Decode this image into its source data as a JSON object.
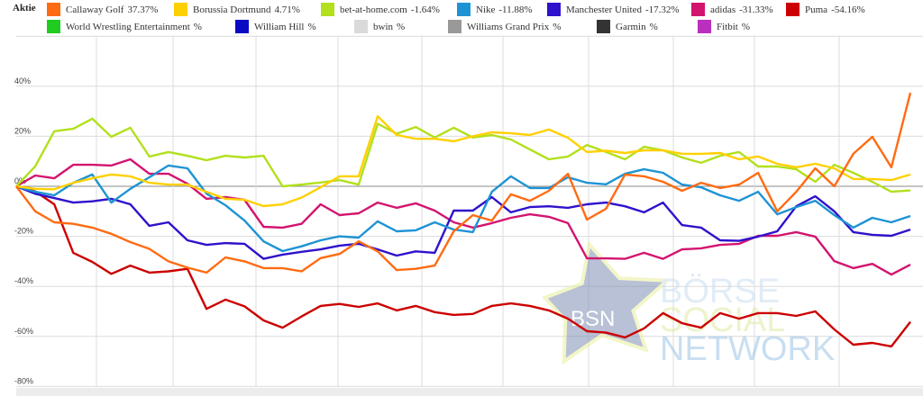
{
  "legend": {
    "title": "Aktie",
    "items": [
      {
        "name": "Callaway Golf",
        "value": "37.37%",
        "color": "#ff6b12"
      },
      {
        "name": "Borussia Dortmund",
        "value": "4.71%",
        "color": "#ffd000"
      },
      {
        "name": "bet-at-home.com",
        "value": "-1.64%",
        "color": "#b2e01c"
      },
      {
        "name": "Nike",
        "value": "-11.88%",
        "color": "#1e93d4"
      },
      {
        "name": "Manchester United",
        "value": "-17.32%",
        "color": "#2e12cc"
      },
      {
        "name": "adidas",
        "value": "-31.33%",
        "color": "#d3146f"
      },
      {
        "name": "Puma",
        "value": "-54.16%",
        "color": "#cc0000"
      },
      {
        "name": "World Wrestling Entertainment",
        "value": "%",
        "color": "#1fcc1f"
      },
      {
        "name": "William Hill",
        "value": "%",
        "color": "#0a0ac4"
      },
      {
        "name": "bwin",
        "value": "%",
        "color": "#dadada"
      },
      {
        "name": "Williams Grand Prix",
        "value": "%",
        "color": "#999999"
      },
      {
        "name": "Garmin",
        "value": "%",
        "color": "#333333"
      },
      {
        "name": "Fitbit",
        "value": "%",
        "color": "#bb2fbf"
      }
    ]
  },
  "watermark": {
    "logo": "BSN",
    "line1": "BÖRSE",
    "line2": "SOCIAL",
    "line3": "NETWORK"
  },
  "chart_data": {
    "type": "line",
    "title": "",
    "xlabel": "",
    "ylabel": "",
    "ylim": [
      -80,
      60
    ],
    "yticks": [
      {
        "value": 40,
        "label": "40%"
      },
      {
        "value": 20,
        "label": "20%"
      },
      {
        "value": 0,
        "label": "0%"
      },
      {
        "value": -20,
        "label": "-20%"
      },
      {
        "value": -40,
        "label": "-40%"
      },
      {
        "value": -60,
        "label": "-60%"
      },
      {
        "value": -80,
        "label": "-80%"
      }
    ],
    "grid": true,
    "legend_position": "top",
    "series": [
      {
        "name": "Callaway Golf",
        "color": "#ff6b12",
        "values": [
          0,
          -10,
          -14.4,
          -15,
          -16.5,
          -19,
          -22.3,
          -25,
          -30,
          -32.5,
          -34.5,
          -28.4,
          -30,
          -32.7,
          -32.7,
          -34,
          -28.7,
          -27,
          -22,
          -26,
          -33.5,
          -33,
          -31.7,
          -18,
          -11.5,
          -13.7,
          -3.2,
          -5.8,
          -1.8,
          5,
          -13.3,
          -9,
          4.7,
          4,
          1.8,
          -1.8,
          1.4,
          -0.7,
          0.7,
          5.4,
          -10,
          -2.2,
          7.2,
          0,
          13,
          19.8,
          7.6,
          37.37
        ]
      },
      {
        "name": "Borussia Dortmund",
        "color": "#ffd000",
        "values": [
          0,
          -1,
          -1.2,
          1.4,
          3.2,
          4.7,
          4,
          1.4,
          0.7,
          0.7,
          -2.2,
          -5,
          -5.4,
          -7.9,
          -7.2,
          -4.5,
          -0.4,
          4,
          4,
          28,
          20.5,
          19,
          19,
          18,
          20,
          21.6,
          21.2,
          20.5,
          22.7,
          19.4,
          13.7,
          14.2,
          13.3,
          14.4,
          14.4,
          13,
          13,
          13.3,
          10.8,
          11.9,
          9,
          7.6,
          9,
          7.2,
          2.9,
          2.9,
          2.5,
          4.71
        ]
      },
      {
        "name": "bet-at-home.com",
        "color": "#b2e01c",
        "values": [
          0,
          8,
          22,
          23,
          27,
          19.8,
          23.4,
          11.9,
          13.7,
          12.2,
          10.4,
          12.2,
          11.5,
          12.2,
          0,
          0.7,
          1.5,
          2.5,
          0.7,
          25,
          21,
          23.7,
          19.5,
          23.4,
          19.5,
          20.5,
          18.7,
          14.7,
          10.8,
          11.9,
          16.5,
          13.7,
          10.8,
          15.8,
          14.4,
          11.5,
          9.4,
          12.2,
          13.7,
          7.9,
          7.9,
          6.8,
          1.8,
          8.6,
          5.4,
          1.8,
          -2.2,
          -1.64
        ]
      },
      {
        "name": "Nike",
        "color": "#1e93d4",
        "values": [
          0,
          -2.2,
          -3.6,
          1.4,
          4.7,
          -6.5,
          -1,
          3.6,
          8.3,
          7.2,
          -2.9,
          -7.6,
          -13.7,
          -22,
          -25.9,
          -24,
          -21.6,
          -20,
          -20.5,
          -14,
          -18,
          -17.6,
          -14.4,
          -17.3,
          -18.3,
          -2.2,
          4,
          -0.7,
          -0.7,
          3.6,
          1.4,
          0.8,
          5,
          6.8,
          5.4,
          0.7,
          -0.4,
          -3.6,
          -5.8,
          -2.2,
          -11.2,
          -8.3,
          -5.8,
          -11.5,
          -16.5,
          -12.6,
          -14.4,
          -11.88
        ]
      },
      {
        "name": "Manchester United",
        "color": "#2e12cc",
        "values": [
          0,
          -3,
          -4.7,
          -6.5,
          -6,
          -5,
          -7.2,
          -15.8,
          -14.4,
          -21.6,
          -23.4,
          -22.7,
          -23,
          -29,
          -27.3,
          -26.2,
          -25.2,
          -23.7,
          -23,
          -25.2,
          -27.7,
          -26,
          -26.6,
          -9.7,
          -9.7,
          -4.3,
          -10.4,
          -8.3,
          -8,
          -8.6,
          -7.2,
          -6.5,
          -8,
          -10.4,
          -6.5,
          -15.5,
          -16.5,
          -21.6,
          -21.8,
          -20.1,
          -18,
          -8,
          -4,
          -10,
          -18.3,
          -19.4,
          -19.8,
          -17.32
        ]
      },
      {
        "name": "adidas",
        "color": "#d3146f",
        "values": [
          0,
          4.3,
          3.2,
          8.6,
          8.6,
          8.3,
          10.8,
          5,
          5,
          1,
          -5,
          -4.3,
          -5.4,
          -16.2,
          -16.5,
          -15,
          -7.2,
          -11.5,
          -10.8,
          -6.5,
          -8.6,
          -6.8,
          -9.7,
          -14.4,
          -16.5,
          -14.7,
          -12.6,
          -11.2,
          -12.2,
          -14.7,
          -28.8,
          -28.8,
          -29,
          -26.6,
          -29,
          -25.2,
          -24.8,
          -23.4,
          -23,
          -19.8,
          -19.8,
          -18.3,
          -20.1,
          -29.9,
          -32.7,
          -31,
          -35.3,
          -31.33
        ]
      },
      {
        "name": "Puma",
        "color": "#cc0000",
        "values": [
          0,
          -2,
          -7.2,
          -26.6,
          -30.2,
          -35,
          -31.7,
          -34.5,
          -34,
          -33,
          -49,
          -45.3,
          -48,
          -53.6,
          -56.5,
          -52,
          -47.8,
          -47,
          -48.2,
          -46.8,
          -49.6,
          -47.8,
          -50.3,
          -51.4,
          -51,
          -47.8,
          -46.8,
          -47.8,
          -49.6,
          -52.9,
          -57.9,
          -58.5,
          -60.4,
          -56.8,
          -50.7,
          -54.7,
          -56.5,
          -50.7,
          -52.9,
          -50.7,
          -50.7,
          -51.8,
          -50,
          -57.2,
          -63.3,
          -62.6,
          -64,
          -54.16
        ]
      }
    ]
  }
}
